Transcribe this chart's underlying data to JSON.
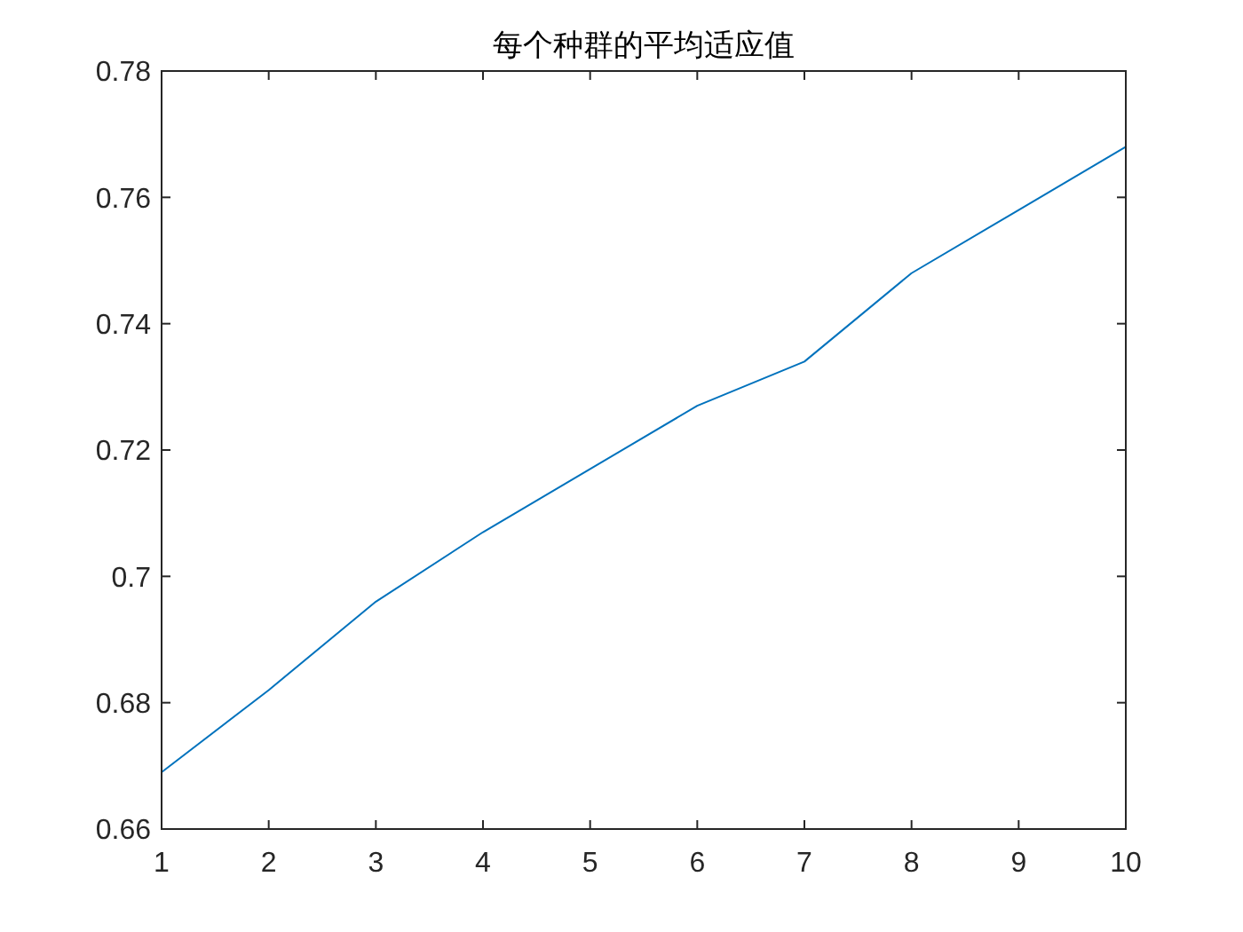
{
  "chart_data": {
    "type": "line",
    "title": "每个种群的平均适应值",
    "x": [
      1,
      2,
      3,
      4,
      5,
      6,
      7,
      8,
      9,
      10
    ],
    "series": [
      {
        "color": "#0072bd",
        "values": [
          0.669,
          0.682,
          0.696,
          0.707,
          0.717,
          0.727,
          0.734,
          0.748,
          0.758,
          0.768
        ]
      }
    ],
    "xlim": [
      1,
      10
    ],
    "ylim": [
      0.66,
      0.78
    ],
    "xticks": [
      1,
      2,
      3,
      4,
      5,
      6,
      7,
      8,
      9,
      10
    ],
    "yticks": [
      0.66,
      0.68,
      0.7,
      0.72,
      0.74,
      0.76,
      0.78
    ]
  }
}
